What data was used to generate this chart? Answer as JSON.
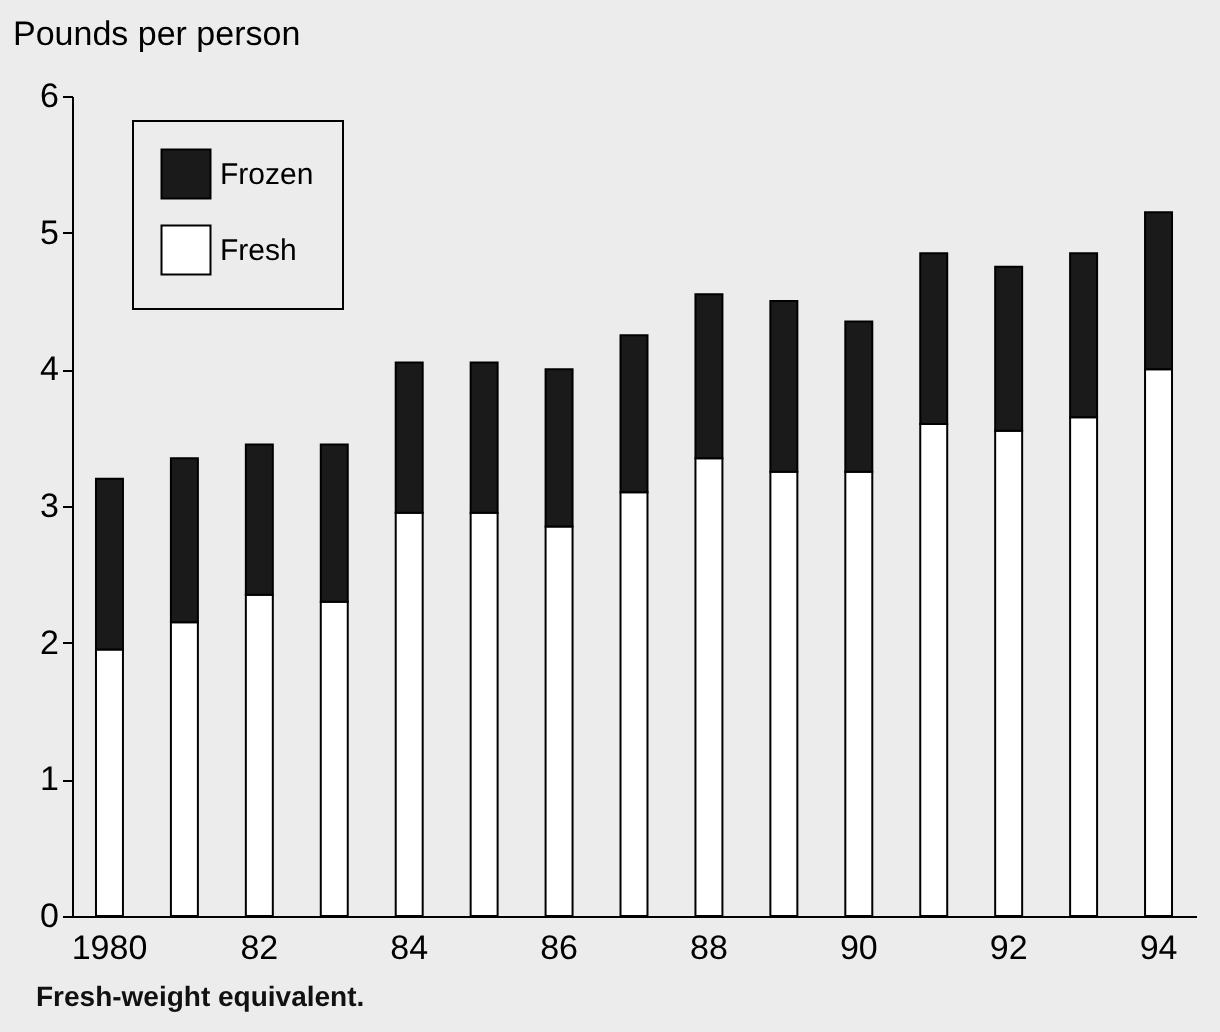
{
  "chart_data": {
    "type": "bar",
    "stacked": true,
    "ylabel": "Pounds per person",
    "categories": [
      "1980",
      null,
      "82",
      null,
      "84",
      null,
      "86",
      null,
      "88",
      null,
      "90",
      null,
      "92",
      null,
      "94"
    ],
    "series": [
      {
        "name": "Fresh",
        "color": "#ffffff",
        "values": [
          1.95,
          2.15,
          2.35,
          2.3,
          2.95,
          2.95,
          2.85,
          3.1,
          3.35,
          3.25,
          3.25,
          3.6,
          3.55,
          3.65,
          4.0
        ]
      },
      {
        "name": "Frozen",
        "color": "#1a1a1a",
        "values": [
          1.25,
          1.2,
          1.1,
          1.15,
          1.1,
          1.1,
          1.15,
          1.15,
          1.2,
          1.25,
          1.1,
          1.25,
          1.2,
          1.2,
          1.15
        ]
      }
    ],
    "ylim": [
      0,
      6
    ],
    "yticks": [
      0,
      1,
      2,
      3,
      4,
      5,
      6
    ],
    "grid": false,
    "legend": "top left",
    "annotations": [
      "Fresh-weight equivalent."
    ]
  }
}
